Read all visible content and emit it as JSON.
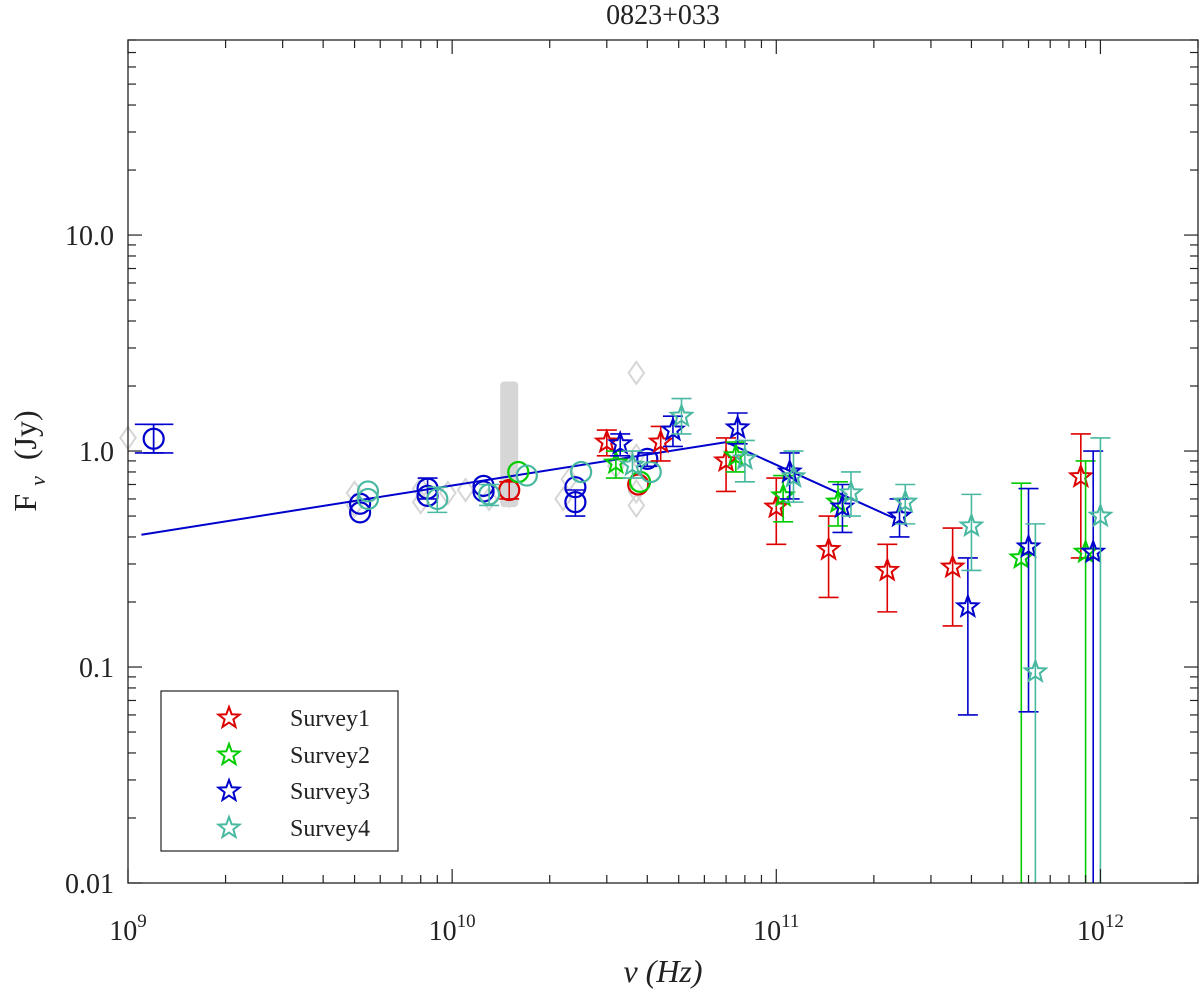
{
  "chart_data": {
    "type": "scatter",
    "title": "0823+033",
    "xlabel": "ν (Hz)",
    "ylabel_main": "F",
    "ylabel_sub": "ν",
    "ylabel_unit": "(Jy)",
    "xscale": "log",
    "yscale": "log",
    "xlim": [
      1000000000.0,
      2000000000000.0
    ],
    "ylim": [
      0.01,
      80
    ],
    "xticks": [
      {
        "value": 1000000000.0,
        "base": "10",
        "exp": "9"
      },
      {
        "value": 10000000000.0,
        "base": "10",
        "exp": "10"
      },
      {
        "value": 100000000000.0,
        "base": "10",
        "exp": "11"
      },
      {
        "value": 1000000000000.0,
        "base": "10",
        "exp": "12"
      }
    ],
    "yticks": [
      {
        "value": 0.01,
        "label": "0.01"
      },
      {
        "value": 0.1,
        "label": "0.1"
      },
      {
        "value": 1,
        "label": "1.0"
      },
      {
        "value": 10,
        "label": "10.0"
      }
    ],
    "fit_line": {
      "color": "#0000cc",
      "points": [
        [
          1100000000.0,
          0.41
        ],
        [
          70000000000.0,
          1.1
        ],
        [
          230000000000.0,
          0.49
        ]
      ]
    },
    "archival_points": {
      "color": "#d6d6d6",
      "points": [
        [
          5000000000.0,
          0.56
        ],
        [
          5000000000.0,
          0.64
        ],
        [
          8000000000.0,
          0.58
        ],
        [
          8000000000.0,
          0.67
        ],
        [
          9700000000.0,
          0.64
        ],
        [
          11000000000.0,
          0.66
        ],
        [
          13000000000.0,
          0.6
        ],
        [
          15000000000.0,
          0.62
        ],
        [
          22000000000.0,
          0.6
        ],
        [
          23000000000.0,
          0.74
        ],
        [
          32000000000.0,
          0.85
        ],
        [
          37000000000.0,
          0.56
        ],
        [
          37000000000.0,
          0.65
        ],
        [
          37000000000.0,
          0.95
        ],
        [
          37000000000.0,
          2.3
        ],
        [
          1000000000.0,
          1.15
        ]
      ],
      "band": {
        "x": 15000000000.0,
        "lower": 0.55,
        "upper": 2.1
      }
    },
    "circle_series": [
      {
        "name": "blue",
        "color": "#0000cc",
        "points": [
          {
            "x": 1200000000.0,
            "y": 1.14,
            "lo": 0.98,
            "hi": 1.33,
            "xerr": [
              1050000000.0,
              1380000000.0
            ]
          },
          {
            "x": 5200000000.0,
            "y": 0.52
          },
          {
            "x": 5200000000.0,
            "y": 0.57
          },
          {
            "x": 8400000000.0,
            "y": 0.62
          },
          {
            "x": 8400000000.0,
            "y": 0.67,
            "lo": 0.6,
            "hi": 0.75
          },
          {
            "x": 12500000000.0,
            "y": 0.65
          },
          {
            "x": 12500000000.0,
            "y": 0.69
          },
          {
            "x": 24000000000.0,
            "y": 0.58,
            "lo": 0.5,
            "hi": 0.66
          },
          {
            "x": 24000000000.0,
            "y": 0.68
          },
          {
            "x": 40000000000.0,
            "y": 0.92,
            "lo": 0.85,
            "hi": 0.98
          }
        ]
      },
      {
        "name": "red",
        "color": "#dd0000",
        "points": [
          {
            "x": 15000000000.0,
            "y": 0.66,
            "lo": 0.6,
            "hi": 0.72
          },
          {
            "x": 37500000000.0,
            "y": 0.7
          }
        ]
      },
      {
        "name": "green",
        "color": "#00cc00",
        "points": [
          {
            "x": 16000000000.0,
            "y": 0.8
          },
          {
            "x": 38000000000.0,
            "y": 0.72
          }
        ]
      },
      {
        "name": "teal",
        "color": "#48b8a0",
        "points": [
          {
            "x": 5500000000.0,
            "y": 0.6
          },
          {
            "x": 5500000000.0,
            "y": 0.65
          },
          {
            "x": 9000000000.0,
            "y": 0.6,
            "lo": 0.52,
            "hi": 0.68
          },
          {
            "x": 13000000000.0,
            "y": 0.63,
            "lo": 0.56,
            "hi": 0.7
          },
          {
            "x": 17000000000.0,
            "y": 0.77
          },
          {
            "x": 25000000000.0,
            "y": 0.8
          },
          {
            "x": 41000000000.0,
            "y": 0.8
          }
        ]
      }
    ],
    "series": [
      {
        "name": "Survey1",
        "color": "#dd0000",
        "points": [
          {
            "x": 30000000000.0,
            "y": 1.1,
            "lo": 0.95,
            "hi": 1.25
          },
          {
            "x": 44000000000.0,
            "y": 1.1,
            "lo": 0.9,
            "hi": 1.3
          },
          {
            "x": 70000000000.0,
            "y": 0.9,
            "lo": 0.65,
            "hi": 1.15
          },
          {
            "x": 100000000000.0,
            "y": 0.55,
            "lo": 0.37,
            "hi": 0.75
          },
          {
            "x": 145000000000.0,
            "y": 0.35,
            "lo": 0.21,
            "hi": 0.5
          },
          {
            "x": 220000000000.0,
            "y": 0.28,
            "lo": 0.18,
            "hi": 0.37
          },
          {
            "x": 350000000000.0,
            "y": 0.29,
            "lo": 0.155,
            "hi": 0.44
          },
          {
            "x": 870000000000.0,
            "y": 0.76,
            "lo": 0.32,
            "hi": 1.2
          }
        ]
      },
      {
        "name": "Survey2",
        "color": "#00cc00",
        "points": [
          {
            "x": 32000000000.0,
            "y": 0.88,
            "lo": 0.75,
            "hi": 1.0
          },
          {
            "x": 75000000000.0,
            "y": 0.95,
            "lo": 0.8,
            "hi": 1.1
          },
          {
            "x": 105000000000.0,
            "y": 0.62,
            "lo": 0.47,
            "hi": 0.77
          },
          {
            "x": 155000000000.0,
            "y": 0.58,
            "lo": 0.45,
            "hi": 0.72
          },
          {
            "x": 570000000000.0,
            "y": 0.32,
            "lo": 0.005,
            "hi": 0.71
          },
          {
            "x": 900000000000.0,
            "y": 0.34,
            "lo": 0.005,
            "hi": 0.9
          }
        ]
      },
      {
        "name": "Survey3",
        "color": "#0000cc",
        "points": [
          {
            "x": 33000000000.0,
            "y": 1.08,
            "lo": 0.95,
            "hi": 1.2
          },
          {
            "x": 48000000000.0,
            "y": 1.25,
            "lo": 1.05,
            "hi": 1.45
          },
          {
            "x": 76000000000.0,
            "y": 1.28,
            "lo": 1.08,
            "hi": 1.5
          },
          {
            "x": 110000000000.0,
            "y": 0.8,
            "lo": 0.6,
            "hi": 0.98
          },
          {
            "x": 160000000000.0,
            "y": 0.55,
            "lo": 0.42,
            "hi": 0.7
          },
          {
            "x": 240000000000.0,
            "y": 0.5,
            "lo": 0.4,
            "hi": 0.6
          },
          {
            "x": 390000000000.0,
            "y": 0.19,
            "lo": 0.06,
            "hi": 0.32
          },
          {
            "x": 600000000000.0,
            "y": 0.36,
            "lo": 0.062,
            "hi": 0.67
          },
          {
            "x": 950000000000.0,
            "y": 0.34,
            "lo": 0.005,
            "hi": 1.0
          }
        ]
      },
      {
        "name": "Survey4",
        "color": "#48b8a0",
        "points": [
          {
            "x": 36000000000.0,
            "y": 0.86,
            "lo": 0.75,
            "hi": 1.0
          },
          {
            "x": 51000000000.0,
            "y": 1.45,
            "lo": 1.2,
            "hi": 1.75
          },
          {
            "x": 80000000000.0,
            "y": 0.92,
            "lo": 0.72,
            "hi": 1.12
          },
          {
            "x": 113000000000.0,
            "y": 0.76,
            "lo": 0.58,
            "hi": 1.0
          },
          {
            "x": 170000000000.0,
            "y": 0.64,
            "lo": 0.5,
            "hi": 0.8
          },
          {
            "x": 250000000000.0,
            "y": 0.58,
            "lo": 0.46,
            "hi": 0.7
          },
          {
            "x": 400000000000.0,
            "y": 0.45,
            "lo": 0.28,
            "hi": 0.63
          },
          {
            "x": 630000000000.0,
            "y": 0.095,
            "lo": 0.005,
            "hi": 0.46
          },
          {
            "x": 1000000000000.0,
            "y": 0.5,
            "lo": 0.005,
            "hi": 1.15
          }
        ]
      }
    ],
    "legend": {
      "location": "bottom-left",
      "entries": [
        "Survey1",
        "Survey2",
        "Survey3",
        "Survey4"
      ]
    }
  }
}
